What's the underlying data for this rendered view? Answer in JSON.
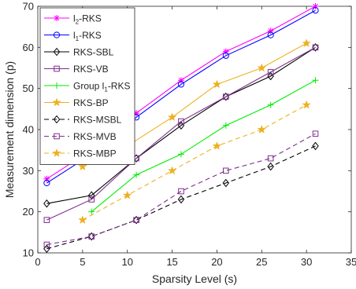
{
  "chart_data": {
    "type": "line",
    "xlabel": "Sparsity Level (s)",
    "ylabel": "Measurement dimension (p)",
    "xlim": [
      0,
      35
    ],
    "ylim": [
      10,
      70
    ],
    "xticks": [
      0,
      5,
      10,
      15,
      20,
      25,
      30,
      35
    ],
    "yticks": [
      10,
      20,
      30,
      40,
      50,
      60,
      70
    ],
    "grid": false,
    "legend_position": "top-left",
    "series": [
      {
        "name": "l2-RKS",
        "legend_main": "l",
        "legend_sub": "2",
        "legend_rest": "-RKS",
        "color": "#ff00ff",
        "marker": "asterisk",
        "dash": "solid",
        "x": [
          1,
          6,
          11,
          16,
          21,
          26,
          31
        ],
        "y": [
          28,
          35,
          44,
          52,
          59,
          64,
          70
        ]
      },
      {
        "name": "l1-RKS",
        "legend_main": "l",
        "legend_sub": "1",
        "legend_rest": "-RKS",
        "color": "#0000ff",
        "marker": "circle",
        "dash": "solid",
        "x": [
          1,
          6,
          11,
          16,
          21,
          26,
          31
        ],
        "y": [
          27,
          34,
          43,
          51,
          58,
          63,
          69
        ]
      },
      {
        "name": "RKS-SBL",
        "color": "#000000",
        "marker": "diamond",
        "dash": "solid",
        "x": [
          1,
          6,
          11,
          16,
          21,
          26,
          31
        ],
        "y": [
          22,
          24,
          33,
          41,
          48,
          53,
          60
        ]
      },
      {
        "name": "RKS-VB",
        "color": "#7e2f8e",
        "marker": "square",
        "dash": "solid",
        "x": [
          1,
          6,
          11,
          16,
          21,
          26,
          31
        ],
        "y": [
          18,
          23,
          33,
          42,
          48,
          54,
          60
        ]
      },
      {
        "name": "Group l1-RKS",
        "legend_main": "Group l",
        "legend_sub": "1",
        "legend_rest": "-RKS",
        "color": "#00ee00",
        "marker": "plus",
        "dash": "solid",
        "x": [
          6,
          11,
          16,
          21,
          26,
          31
        ],
        "y": [
          20,
          29,
          34,
          41,
          46,
          52
        ]
      },
      {
        "name": "RKS-BP",
        "color": "#edb120",
        "marker": "star",
        "dash": "solid",
        "x": [
          5,
          10,
          15,
          20,
          25,
          30
        ],
        "y": [
          31,
          36,
          43,
          51,
          55,
          61
        ]
      },
      {
        "name": "RKS-MSBL",
        "color": "#000000",
        "marker": "diamond",
        "dash": "dashed",
        "x": [
          1,
          6,
          11,
          16,
          21,
          26,
          31
        ],
        "y": [
          11,
          14,
          18,
          23,
          27,
          31,
          36
        ]
      },
      {
        "name": "RKS-MVB",
        "color": "#7e2f8e",
        "marker": "square",
        "dash": "dashed",
        "x": [
          1,
          6,
          11,
          16,
          21,
          26,
          31
        ],
        "y": [
          12,
          14,
          18,
          25,
          30,
          33,
          39
        ]
      },
      {
        "name": "RKS-MBP",
        "color": "#edb120",
        "marker": "star",
        "dash": "dashed",
        "x": [
          5,
          10,
          15,
          20,
          25,
          30
        ],
        "y": [
          18,
          24,
          30,
          36,
          40,
          46
        ]
      }
    ]
  }
}
